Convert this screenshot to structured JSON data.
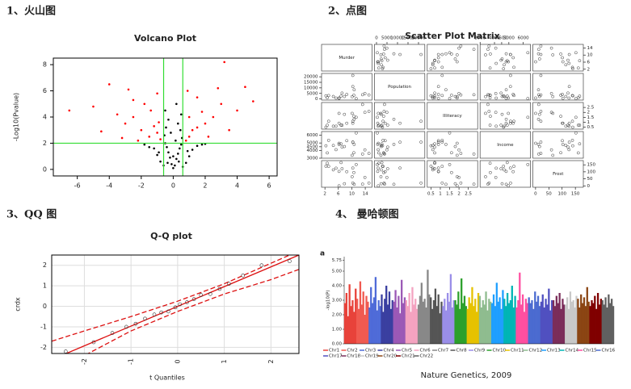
{
  "panels": [
    {
      "heading": "1、火山图",
      "chart_data": {
        "type": "volcano",
        "title": "Volcano Plot",
        "ylabel": "-Log10(Pvalue)",
        "xlim": [
          -7.5,
          6.5
        ],
        "xticks": [
          -6,
          -4,
          -2,
          0,
          2,
          4,
          6
        ],
        "ylim": [
          -0.5,
          8.5
        ],
        "yticks": [
          0,
          2,
          4,
          6,
          8
        ],
        "thresholds": {
          "x": [
            -0.6,
            0.6
          ],
          "y": 2
        },
        "colors": {
          "significant": "#ff0000",
          "other": "#000000",
          "threshold": "#33dd33"
        },
        "x": [
          0,
          0.1,
          -0.1,
          0.2,
          -0.2,
          0.3,
          -0.3,
          0.4,
          -0.4,
          0.5,
          -0.5,
          0.55,
          -0.55,
          0.45,
          -0.45,
          0.3,
          -0.3,
          0.5,
          -0.5,
          0.2,
          0.8,
          -0.8,
          1.0,
          -1.0,
          1.2,
          -1.2,
          1.5,
          -1.5,
          0.6,
          -0.6,
          1.8,
          -1.8,
          0.9,
          -0.9,
          0.0,
          0.15,
          -0.15,
          0.35,
          -0.35,
          2.0,
          0.8,
          1.0,
          1.2,
          1.5,
          2.0,
          2.5,
          3.0,
          1.5,
          2.8,
          4.5,
          3.2,
          5.0,
          1.0,
          2.2,
          0.9,
          1.8,
          3.5,
          4.0,
          -0.8,
          -1.0,
          -1.2,
          -1.5,
          -2.0,
          -2.5,
          -3.0,
          -3.5,
          -1.8,
          -1.0,
          -2.8,
          -4.0,
          -6.5,
          -5.0,
          -2.2,
          -1.4,
          -0.9,
          -3.2,
          -2.5,
          -4.5
        ],
        "y": [
          0.1,
          0.3,
          0.4,
          0.8,
          0.9,
          1.2,
          1.3,
          1.6,
          1.7,
          1.9,
          2.0,
          2.4,
          2.6,
          3.0,
          3.2,
          3.5,
          3.8,
          4.2,
          4.5,
          5.0,
          0.5,
          0.6,
          1.0,
          1.1,
          1.5,
          1.6,
          1.8,
          1.7,
          0.2,
          0.3,
          1.9,
          1.9,
          1.4,
          1.3,
          1.0,
          2.2,
          2.8,
          0.6,
          0.5,
          1.95,
          2.2,
          2.5,
          3.0,
          3.2,
          3.5,
          4.0,
          5.0,
          5.5,
          6.2,
          6.3,
          8.2,
          5.2,
          4.0,
          2.5,
          6.0,
          4.4,
          3.0,
          4.5,
          2.3,
          2.8,
          3.3,
          2.5,
          3.0,
          4.0,
          3.5,
          4.2,
          5.0,
          5.8,
          6.1,
          6.5,
          4.5,
          4.8,
          2.2,
          4.5,
          3.6,
          2.4,
          5.3,
          2.9
        ]
      }
    },
    {
      "heading": "2、点图",
      "chart_data": {
        "type": "scatter_matrix",
        "title": "Scatter Plot Matrix",
        "color": "#333333",
        "variables": [
          {
            "name": "Murder",
            "lim": [
              1,
              16
            ],
            "ticks": [
              2,
              6,
              10,
              14
            ],
            "values": [
              15.1,
              11.3,
              7.8,
              10.1,
              10.3,
              6.8,
              3.1,
              6.2,
              10.7,
              13.9,
              6.2,
              5.3,
              10.3,
              7.1,
              2.3,
              4.5,
              10.6,
              13.2,
              2.7,
              8.5
            ]
          },
          {
            "name": "Population",
            "lim": [
              -1000,
              23000
            ],
            "ticks": [
              0,
              5000,
              10000,
              15000,
              20000
            ],
            "values": [
              3615,
              365,
              2212,
              2110,
              21198,
              2541,
              3100,
              579,
              8277,
              4931,
              868,
              813,
              11197,
              5313,
              2861,
              2280,
              3387,
              3806,
              1058,
              4122
            ]
          },
          {
            "name": "Illiteracy",
            "lim": [
              0.3,
              3.0
            ],
            "ticks": [
              0.5,
              1.0,
              1.5,
              2.0,
              2.5
            ],
            "values": [
              2.1,
              1.5,
              1.8,
              1.9,
              1.1,
              0.7,
              1.1,
              0.9,
              1.3,
              2.0,
              1.9,
              0.6,
              0.9,
              0.7,
              0.5,
              0.6,
              1.6,
              2.8,
              0.7,
              0.9
            ]
          },
          {
            "name": "Income",
            "lim": [
              3000,
              6500
            ],
            "ticks": [
              3000,
              4000,
              4500,
              5000,
              6000
            ],
            "values": [
              3624,
              6315,
              4530,
              3378,
              5114,
              4884,
              5348,
              4809,
              4815,
              4091,
              4963,
              4119,
              5107,
              4458,
              4628,
              4669,
              3712,
              3545,
              3694,
              5299
            ]
          },
          {
            "name": "Frost",
            "lim": [
              -10,
              180
            ],
            "ticks": [
              0,
              50,
              100,
              150
            ],
            "values": [
              20,
              152,
              15,
              65,
              20,
              166,
              139,
              103,
              11,
              60,
              0,
              126,
              127,
              122,
              140,
              114,
              95,
              12,
              161,
              101
            ]
          }
        ]
      }
    },
    {
      "heading": "3、QQ 图",
      "chart_data": {
        "type": "qq",
        "title": "Q-Q plot",
        "xlabel": "t Quantiles",
        "ylabel": "crdx",
        "xlim": [
          -2.7,
          2.6
        ],
        "xticks": [
          -2,
          -1,
          0,
          1,
          2
        ],
        "ylim": [
          -2.3,
          2.5
        ],
        "yticks": [
          -2,
          -1,
          0,
          1,
          2
        ],
        "color": "#dd1111",
        "x": [
          -2.4,
          -1.8,
          -1.4,
          -1.1,
          -0.9,
          -0.7,
          -0.5,
          -0.35,
          -0.2,
          -0.05,
          0.05,
          0.2,
          0.35,
          0.5,
          0.7,
          0.9,
          1.1,
          1.4,
          1.8,
          2.4
        ],
        "y": [
          -2.2,
          -1.75,
          -1.3,
          -1.0,
          -0.85,
          -0.6,
          -0.4,
          -0.3,
          -0.25,
          -0.05,
          0.1,
          0.2,
          0.35,
          0.55,
          0.6,
          0.85,
          1.1,
          1.5,
          2.0,
          2.2
        ],
        "reference_line": {
          "x": [
            -2.7,
            2.6
          ],
          "y": [
            -2.6,
            2.5
          ]
        },
        "envelope": {
          "x": [
            -2.7,
            -2,
            -1,
            0,
            1,
            2,
            2.6
          ],
          "upper": [
            -1.7,
            -1.2,
            -0.5,
            0.25,
            1.1,
            2.1,
            2.7
          ],
          "lower": [
            -3.0,
            -2.4,
            -1.2,
            -0.25,
            0.6,
            1.3,
            1.8
          ]
        }
      }
    },
    {
      "heading": "4、 曼哈顿图",
      "caption": "Nature Genetics, 2009",
      "chart_data": {
        "type": "manhattan",
        "label": "a",
        "ylabel": "-log10(P)",
        "ylim": [
          0,
          6
        ],
        "yticks": [
          {
            "value": 0,
            "label": "0.00"
          },
          {
            "value": 1,
            "label": "1.00"
          },
          {
            "value": 2,
            "label": "2.00"
          },
          {
            "value": 3,
            "label": "3.00"
          },
          {
            "value": 4,
            "label": "4.00"
          },
          {
            "value": 5,
            "label": "5.00"
          },
          {
            "value": 5.75,
            "label": "5.75"
          }
        ],
        "series": [
          {
            "name": "Chr1",
            "color": "#e8423a",
            "values": [
              2.8,
              3.5,
              1.9,
              4.1,
              2.6,
              3.0,
              2.2,
              3.8
            ]
          },
          {
            "name": "Chr2",
            "color": "#f05a50",
            "values": [
              3.1,
              2.4,
              4.3,
              2.7,
              3.6,
              2.0,
              3.3,
              2.9
            ]
          },
          {
            "name": "Chr3",
            "color": "#4f6bd8",
            "values": [
              2.5,
              3.9,
              2.8,
              3.2,
              4.6,
              2.3,
              3.0,
              2.6
            ]
          },
          {
            "name": "Chr4",
            "color": "#3a3fa0",
            "values": [
              3.4,
              2.2,
              3.1,
              4.0,
              2.7,
              3.6,
              2.4,
              3.0
            ]
          },
          {
            "name": "Chr5",
            "color": "#9b59b6",
            "values": [
              2.9,
              3.7,
              2.5,
              3.3,
              2.1,
              4.4,
              2.8,
              3.2
            ]
          },
          {
            "name": "Chr6",
            "color": "#f4a3c0",
            "values": [
              3.0,
              2.6,
              3.5,
              2.2,
              3.9,
              2.7,
              3.1,
              2.4
            ]
          },
          {
            "name": "Chr7",
            "color": "#888888",
            "values": [
              2.7,
              3.3,
              4.2,
              2.9,
              3.1,
              2.5,
              5.1,
              3.4
            ]
          },
          {
            "name": "Chr8",
            "color": "#555555",
            "values": [
              3.2,
              2.4,
              3.0,
              3.8,
              2.6,
              3.4,
              2.1,
              2.9
            ]
          },
          {
            "name": "Chr9",
            "color": "#9a8ee8",
            "values": [
              2.6,
              3.1,
              2.3,
              3.5,
              2.9,
              4.8,
              2.5,
              3.0
            ]
          },
          {
            "name": "Chr10",
            "color": "#2ca02c",
            "values": [
              3.0,
              2.7,
              3.6,
              2.4,
              4.5,
              2.8,
              3.3,
              2.6
            ]
          },
          {
            "name": "Chr11",
            "color": "#e6c200",
            "values": [
              2.4,
              3.2,
              2.8,
              3.9,
              2.6,
              3.1,
              2.2,
              3.5
            ]
          },
          {
            "name": "Chr12",
            "color": "#8fbc8f",
            "values": [
              3.3,
              2.5,
              3.0,
              2.7,
              3.6,
              2.3,
              3.1,
              2.9
            ]
          },
          {
            "name": "Chr13",
            "color": "#1f9fff",
            "values": [
              2.8,
              3.4,
              2.6,
              4.2,
              2.9,
              3.2,
              2.4,
              3.7
            ]
          },
          {
            "name": "Chr14",
            "color": "#00b5b5",
            "values": [
              3.1,
              2.6,
              3.5,
              2.8,
              3.0,
              4.0,
              2.5,
              3.3
            ]
          },
          {
            "name": "Chr15",
            "color": "#ff4fa0",
            "values": [
              2.5,
              3.0,
              4.9,
              2.7,
              3.4,
              2.2,
              3.1,
              2.8
            ]
          },
          {
            "name": "Chr16",
            "color": "#4b6bd0",
            "values": [
              3.2,
              2.8,
              3.0,
              2.4,
              3.6,
              2.9,
              3.3,
              2.6
            ]
          },
          {
            "name": "Chr17",
            "color": "#5050c0",
            "values": [
              2.9,
              3.4,
              2.5,
              3.1,
              2.7,
              3.8,
              2.3,
              3.0
            ]
          },
          {
            "name": "Chr18",
            "color": "#7b2d5a",
            "values": [
              3.0,
              2.6,
              3.3,
              2.8,
              3.5,
              2.4,
              3.1,
              2.7
            ]
          },
          {
            "name": "Chr19",
            "color": "#c8c8c8",
            "values": [
              2.7,
              3.2,
              2.4,
              3.6,
              2.9,
              3.0,
              2.5,
              3.3
            ]
          },
          {
            "name": "Chr20",
            "color": "#8b4513",
            "values": [
              3.1,
              2.5,
              3.4,
              2.8,
              3.2,
              2.6,
              3.9,
              2.9
            ]
          },
          {
            "name": "Chr21",
            "color": "#800000",
            "values": [
              2.6,
              3.0,
              2.8,
              3.3,
              2.4,
              3.5,
              2.7,
              3.1
            ]
          },
          {
            "name": "Chr22",
            "color": "#606060",
            "values": [
              3.0,
              2.7,
              3.2,
              2.5,
              3.4,
              2.8,
              3.1,
              2.6
            ]
          }
        ]
      }
    }
  ]
}
